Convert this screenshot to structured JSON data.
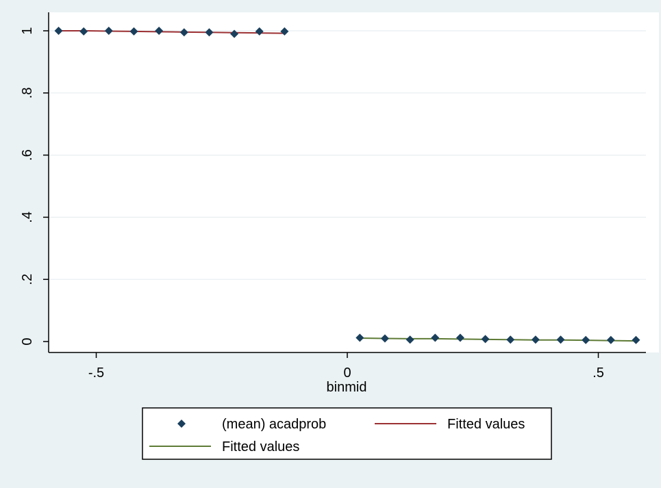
{
  "chart_data": {
    "type": "scatter",
    "xlabel": "binmid",
    "ylabel": "",
    "xlim": [
      -0.6,
      0.6
    ],
    "ylim": [
      0,
      1
    ],
    "x_ticks": [
      -0.5,
      0,
      0.5
    ],
    "x_tick_labels": [
      "-.5",
      "0",
      ".5"
    ],
    "y_ticks": [
      0,
      0.2,
      0.4,
      0.6,
      0.8,
      1
    ],
    "y_tick_labels": [
      "0",
      ".2",
      ".4",
      ".6",
      ".8",
      "1"
    ],
    "grid": true,
    "legend_position": "bottom",
    "series": [
      {
        "name": "(mean) acadprob",
        "kind": "scatter",
        "color": "#1a3f5c",
        "x": [
          -0.575,
          -0.525,
          -0.475,
          -0.425,
          -0.375,
          -0.325,
          -0.275,
          -0.225,
          -0.175,
          -0.125,
          0.025,
          0.075,
          0.125,
          0.175,
          0.225,
          0.275,
          0.325,
          0.375,
          0.425,
          0.475,
          0.525,
          0.575
        ],
        "y": [
          1.0,
          0.998,
          1.0,
          0.998,
          1.0,
          0.995,
          0.995,
          0.99,
          0.998,
          0.998,
          0.012,
          0.01,
          0.006,
          0.012,
          0.012,
          0.008,
          0.006,
          0.006,
          0.006,
          0.005,
          0.005,
          0.005
        ]
      },
      {
        "name": "Fitted values",
        "kind": "line",
        "color": "#9c3033",
        "x": [
          -0.575,
          -0.525,
          -0.475,
          -0.425,
          -0.375,
          -0.325,
          -0.275,
          -0.225,
          -0.175,
          -0.125
        ],
        "y": [
          1.0,
          1.0,
          0.999,
          0.998,
          0.997,
          0.996,
          0.995,
          0.994,
          0.993,
          0.992
        ]
      },
      {
        "name": "Fitted values",
        "kind": "line",
        "color": "#5e7b35",
        "x": [
          0.025,
          0.075,
          0.125,
          0.175,
          0.225,
          0.275,
          0.325,
          0.375,
          0.425,
          0.475,
          0.525,
          0.575
        ],
        "y": [
          0.011,
          0.01,
          0.009,
          0.009,
          0.008,
          0.007,
          0.006,
          0.005,
          0.005,
          0.004,
          0.003,
          0.002
        ]
      }
    ]
  }
}
